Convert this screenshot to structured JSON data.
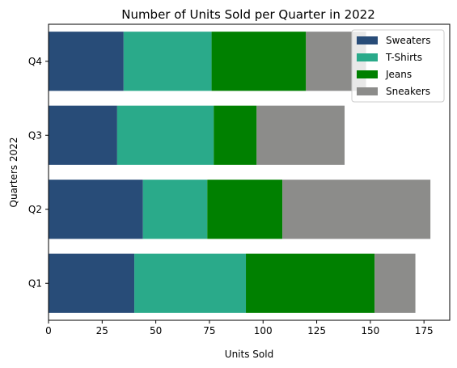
{
  "chart_data": {
    "type": "bar",
    "orientation": "horizontal",
    "stacked": true,
    "title": "Number of Units Sold per Quarter in 2022",
    "xlabel": "Units Sold",
    "ylabel": "Quarters 2022",
    "categories": [
      "Q1",
      "Q2",
      "Q3",
      "Q4"
    ],
    "xlim": [
      0,
      187
    ],
    "xticks": [
      0,
      25,
      50,
      75,
      100,
      125,
      150,
      175
    ],
    "grid": false,
    "legend_position": "top-right",
    "series": [
      {
        "name": "Sweaters",
        "color": "#284c78",
        "values": [
          40,
          44,
          32,
          35
        ]
      },
      {
        "name": "T-Shirts",
        "color": "#2aaa8a",
        "values": [
          52,
          30,
          45,
          41
        ]
      },
      {
        "name": "Jeans",
        "color": "#008000",
        "values": [
          60,
          35,
          20,
          44
        ]
      },
      {
        "name": "Sneakers",
        "color": "#8c8c8a",
        "values": [
          19,
          69,
          41,
          28
        ]
      }
    ]
  }
}
